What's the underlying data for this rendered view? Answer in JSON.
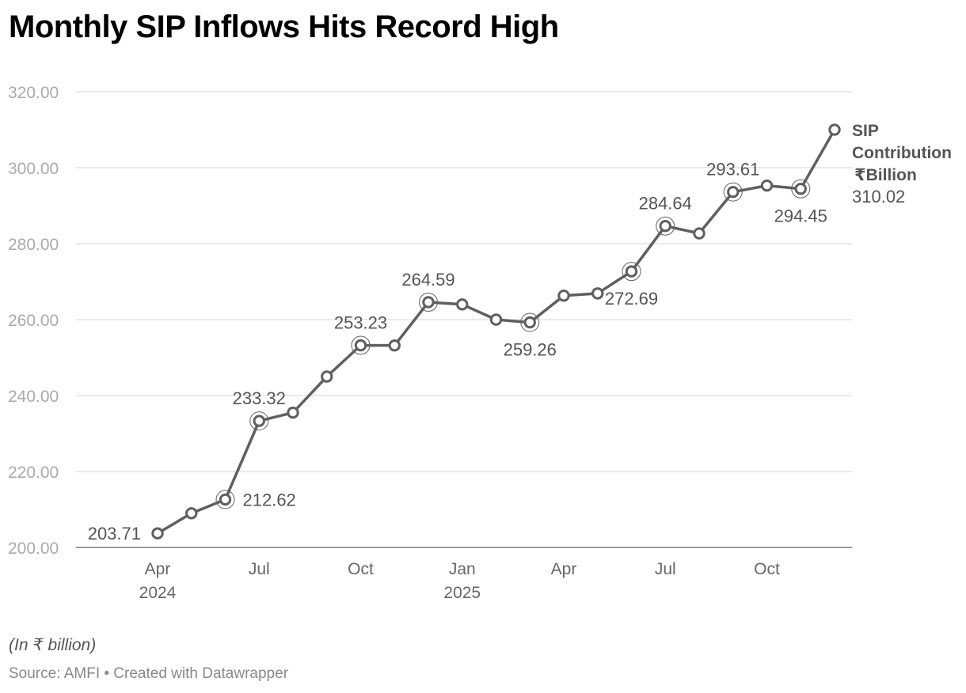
{
  "header": {
    "title": "Monthly SIP Inflows Hits Record High"
  },
  "footer": {
    "note": "(In ₹ billion)",
    "source": "Source: AMFI • Created with Datawrapper"
  },
  "colors": {
    "line": "#5f5f5f",
    "grid": "#dddddd",
    "axis_text": "#aaaaaa"
  },
  "chart_data": {
    "type": "line",
    "title": "Monthly SIP Inflows Hits Record High",
    "ylabel": "(In ₹ billion)",
    "xlabel": "",
    "ylim": [
      200,
      320
    ],
    "yticks": [
      200,
      220,
      240,
      260,
      280,
      300,
      320
    ],
    "ytick_labels": [
      "200.00",
      "220.00",
      "240.00",
      "260.00",
      "280.00",
      "300.00",
      "320.00"
    ],
    "x": [
      "2024-04",
      "2024-05",
      "2024-06",
      "2024-07",
      "2024-08",
      "2024-09",
      "2024-10",
      "2024-11",
      "2024-12",
      "2025-01",
      "2025-02",
      "2025-03",
      "2025-04",
      "2025-05",
      "2025-06",
      "2025-07",
      "2025-08",
      "2025-09",
      "2025-10",
      "2025-11",
      "2025-12"
    ],
    "xticks": [
      {
        "index": 0,
        "label": "Apr",
        "sublabel": "2024"
      },
      {
        "index": 3,
        "label": "Jul",
        "sublabel": ""
      },
      {
        "index": 6,
        "label": "Oct",
        "sublabel": ""
      },
      {
        "index": 9,
        "label": "Jan",
        "sublabel": "2025"
      },
      {
        "index": 12,
        "label": "Apr",
        "sublabel": ""
      },
      {
        "index": 15,
        "label": "Jul",
        "sublabel": ""
      },
      {
        "index": 18,
        "label": "Oct",
        "sublabel": ""
      }
    ],
    "series": [
      {
        "name": "SIP Contribution ₹Billion",
        "name_lines": [
          "SIP",
          "Contribution",
          "₹Billion"
        ],
        "end_value_label": "310.02",
        "values": [
          203.71,
          209.0,
          212.62,
          233.32,
          235.5,
          245.0,
          253.23,
          253.2,
          264.59,
          264.0,
          260.0,
          259.26,
          266.3,
          266.9,
          272.69,
          284.64,
          282.7,
          293.61,
          295.3,
          294.45,
          310.02
        ]
      }
    ],
    "highlights": [
      {
        "index": 0,
        "label": "203.71",
        "pos": "left",
        "ring": false
      },
      {
        "index": 2,
        "label": "212.62",
        "pos": "right",
        "ring": true
      },
      {
        "index": 3,
        "label": "233.32",
        "pos": "above",
        "ring": true
      },
      {
        "index": 6,
        "label": "253.23",
        "pos": "above",
        "ring": true
      },
      {
        "index": 8,
        "label": "264.59",
        "pos": "above",
        "ring": true
      },
      {
        "index": 11,
        "label": "259.26",
        "pos": "below",
        "ring": true
      },
      {
        "index": 14,
        "label": "272.69",
        "pos": "below",
        "ring": true
      },
      {
        "index": 15,
        "label": "284.64",
        "pos": "above",
        "ring": true
      },
      {
        "index": 17,
        "label": "293.61",
        "pos": "above",
        "ring": true
      },
      {
        "index": 19,
        "label": "294.45",
        "pos": "below",
        "ring": true
      }
    ]
  }
}
